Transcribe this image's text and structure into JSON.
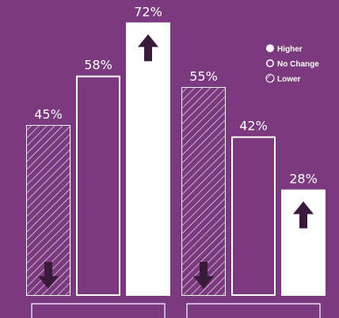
{
  "colors": {
    "background": "#7b3a7f",
    "bar_fill": "#ffffff",
    "outline": "#ffffff",
    "arrow": "#3a1a3a"
  },
  "chart_data": {
    "type": "bar",
    "ylim": [
      0,
      100
    ],
    "groups": [
      {
        "label": "",
        "bars": [
          {
            "series": "Lower",
            "value": 45,
            "label": "45%",
            "arrow": "down"
          },
          {
            "series": "No Change",
            "value": 58,
            "label": "58%"
          },
          {
            "series": "Higher",
            "value": 72,
            "label": "72%",
            "arrow": "up"
          }
        ]
      },
      {
        "label": "",
        "bars": [
          {
            "series": "Lower",
            "value": 55,
            "label": "55%",
            "arrow": "down"
          },
          {
            "series": "No Change",
            "value": 42,
            "label": "42%"
          },
          {
            "series": "Higher",
            "value": 28,
            "label": "28%",
            "arrow": "up"
          }
        ]
      }
    ],
    "legend": {
      "placement": "top-right",
      "items": [
        {
          "name": "Higher",
          "marker": "filled-circle"
        },
        {
          "name": "No Change",
          "marker": "hollow-circle"
        },
        {
          "name": "Lower",
          "marker": "hatched-circle"
        }
      ]
    }
  }
}
